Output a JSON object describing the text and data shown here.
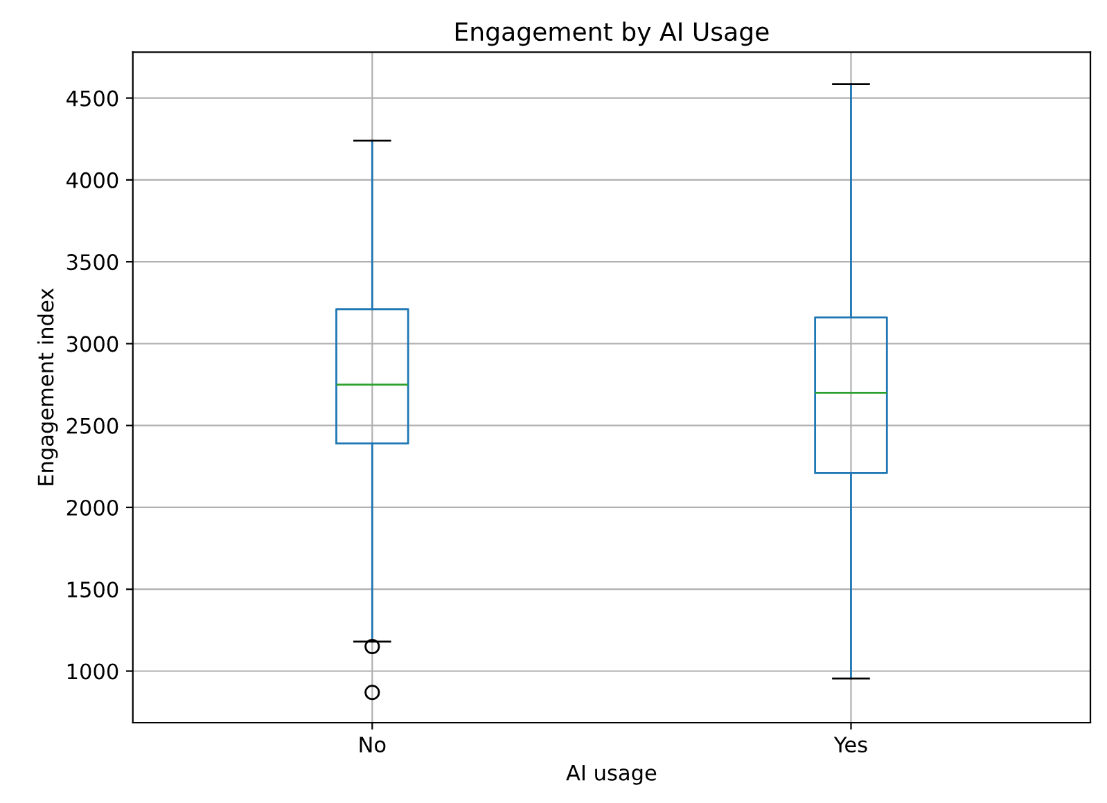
{
  "chart_data": {
    "type": "box",
    "title": "Engagement by AI Usage",
    "xlabel": "AI usage",
    "ylabel": "Engagement index",
    "categories": [
      "No",
      "Yes"
    ],
    "series": [
      {
        "color": "#1f77b4",
        "boxes": [
          {
            "low": 1180,
            "q1": 2390,
            "median": 2750,
            "q3": 3210,
            "high": 4240,
            "outliers": [
              1150,
              870
            ]
          },
          {
            "low": 955,
            "q1": 2210,
            "median": 2700,
            "q3": 3160,
            "high": 4585
          }
        ]
      }
    ],
    "ylim": [
      685,
      4780
    ],
    "yticks": [
      1000,
      1500,
      2000,
      2500,
      3000,
      3500,
      4000,
      4500
    ],
    "grid": true
  }
}
